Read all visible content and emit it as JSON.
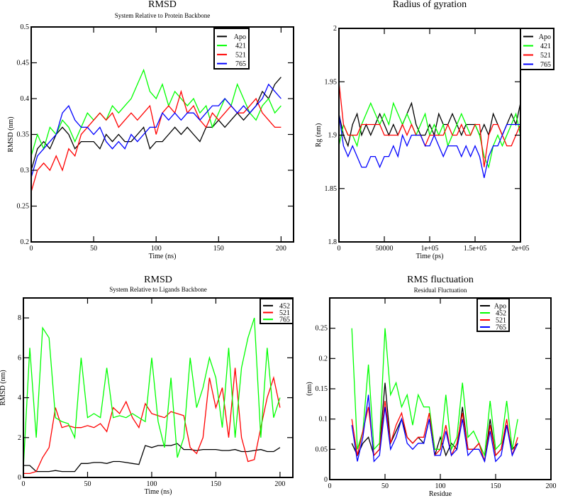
{
  "chart_data": [
    {
      "type": "line",
      "title": "RMSD",
      "subtitle": "System Relative to Protein Backbone",
      "xlabel": "Time (ns)",
      "ylabel": "RMSD (nm)",
      "xlim": [
        0,
        210
      ],
      "ylim": [
        0.2,
        0.5
      ],
      "xticks": [
        0,
        50,
        100,
        150,
        200
      ],
      "xtick_labels": [
        "0",
        "50",
        "100",
        "150",
        "200"
      ],
      "yticks": [
        0.2,
        0.25,
        0.3,
        0.35,
        0.4,
        0.45,
        0.5
      ],
      "ytick_labels": [
        "0.2",
        "0.25",
        "0.3",
        "0.35",
        "0.4",
        "0.45",
        "0.5"
      ],
      "legend_placement": "top-right",
      "x": [
        0,
        5,
        10,
        15,
        20,
        25,
        30,
        35,
        40,
        45,
        50,
        55,
        60,
        65,
        70,
        75,
        80,
        85,
        90,
        95,
        100,
        105,
        110,
        115,
        120,
        125,
        130,
        135,
        140,
        145,
        150,
        155,
        160,
        165,
        170,
        175,
        180,
        185,
        190,
        195,
        200
      ],
      "series": [
        {
          "name": "Apo",
          "color": "#000000",
          "values": [
            0.3,
            0.33,
            0.34,
            0.33,
            0.35,
            0.36,
            0.35,
            0.33,
            0.34,
            0.34,
            0.34,
            0.33,
            0.35,
            0.34,
            0.35,
            0.34,
            0.34,
            0.35,
            0.36,
            0.33,
            0.34,
            0.34,
            0.35,
            0.36,
            0.35,
            0.36,
            0.35,
            0.34,
            0.36,
            0.36,
            0.37,
            0.36,
            0.37,
            0.38,
            0.37,
            0.38,
            0.39,
            0.41,
            0.4,
            0.42,
            0.43
          ]
        },
        {
          "name": "421",
          "color": "#00ff00",
          "values": [
            0.32,
            0.35,
            0.33,
            0.36,
            0.35,
            0.37,
            0.36,
            0.34,
            0.36,
            0.38,
            0.37,
            0.38,
            0.37,
            0.39,
            0.38,
            0.39,
            0.4,
            0.42,
            0.44,
            0.41,
            0.4,
            0.42,
            0.39,
            0.41,
            0.4,
            0.39,
            0.4,
            0.38,
            0.39,
            0.36,
            0.38,
            0.4,
            0.39,
            0.42,
            0.4,
            0.38,
            0.37,
            0.39,
            0.4,
            0.38,
            0.39
          ]
        },
        {
          "name": "521",
          "color": "#ff0000",
          "values": [
            0.27,
            0.3,
            0.31,
            0.3,
            0.32,
            0.3,
            0.33,
            0.32,
            0.35,
            0.36,
            0.37,
            0.38,
            0.37,
            0.38,
            0.36,
            0.37,
            0.38,
            0.37,
            0.38,
            0.39,
            0.35,
            0.38,
            0.39,
            0.38,
            0.41,
            0.38,
            0.39,
            0.37,
            0.36,
            0.38,
            0.37,
            0.38,
            0.39,
            0.38,
            0.38,
            0.39,
            0.4,
            0.38,
            0.37,
            0.36,
            0.36
          ]
        },
        {
          "name": "765",
          "color": "#0000ff",
          "values": [
            0.29,
            0.32,
            0.33,
            0.34,
            0.35,
            0.38,
            0.39,
            0.37,
            0.36,
            0.36,
            0.35,
            0.36,
            0.34,
            0.33,
            0.34,
            0.33,
            0.35,
            0.34,
            0.35,
            0.36,
            0.36,
            0.38,
            0.37,
            0.38,
            0.37,
            0.38,
            0.38,
            0.37,
            0.38,
            0.39,
            0.39,
            0.4,
            0.39,
            0.38,
            0.39,
            0.38,
            0.39,
            0.4,
            0.42,
            0.41,
            0.4
          ]
        }
      ]
    },
    {
      "type": "line",
      "title": "Radius of gyration",
      "subtitle": "",
      "xlabel": "Time (ps)",
      "ylabel": "Rg (nm)",
      "xlim": [
        0,
        200000
      ],
      "ylim": [
        1.8,
        2.0
      ],
      "xticks": [
        0,
        50000,
        100000,
        150000,
        200000
      ],
      "xtick_labels": [
        "0",
        "50000",
        "1e+05",
        "1.5e+05",
        "2e+05"
      ],
      "yticks": [
        1.8,
        1.85,
        1.9,
        1.95,
        2.0
      ],
      "ytick_labels": [
        "1.8",
        "1.85",
        "1.9",
        "1.95",
        "2"
      ],
      "legend_placement": "top-right outside",
      "x": [
        0,
        5000,
        10000,
        15000,
        20000,
        25000,
        30000,
        35000,
        40000,
        45000,
        50000,
        55000,
        60000,
        65000,
        70000,
        75000,
        80000,
        85000,
        90000,
        95000,
        100000,
        105000,
        110000,
        115000,
        120000,
        125000,
        130000,
        135000,
        140000,
        145000,
        150000,
        155000,
        160000,
        165000,
        170000,
        175000,
        180000,
        185000,
        190000,
        195000,
        200000
      ],
      "series": [
        {
          "name": "Apo",
          "color": "#000000",
          "values": [
            1.92,
            1.9,
            1.89,
            1.91,
            1.92,
            1.9,
            1.91,
            1.9,
            1.91,
            1.92,
            1.91,
            1.9,
            1.91,
            1.9,
            1.91,
            1.92,
            1.93,
            1.91,
            1.9,
            1.9,
            1.91,
            1.9,
            1.92,
            1.91,
            1.91,
            1.92,
            1.91,
            1.9,
            1.91,
            1.91,
            1.91,
            1.9,
            1.91,
            1.9,
            1.92,
            1.91,
            1.9,
            1.91,
            1.92,
            1.91,
            1.93
          ]
        },
        {
          "name": "421",
          "color": "#00ff00",
          "values": [
            1.89,
            1.91,
            1.9,
            1.9,
            1.89,
            1.91,
            1.92,
            1.93,
            1.92,
            1.91,
            1.92,
            1.91,
            1.93,
            1.92,
            1.91,
            1.92,
            1.91,
            1.9,
            1.91,
            1.92,
            1.9,
            1.91,
            1.9,
            1.91,
            1.89,
            1.9,
            1.91,
            1.92,
            1.91,
            1.9,
            1.91,
            1.9,
            1.88,
            1.87,
            1.89,
            1.9,
            1.89,
            1.9,
            1.91,
            1.92,
            1.9
          ]
        },
        {
          "name": "521",
          "color": "#ff0000",
          "values": [
            1.95,
            1.91,
            1.9,
            1.9,
            1.9,
            1.91,
            1.91,
            1.91,
            1.91,
            1.91,
            1.9,
            1.9,
            1.9,
            1.9,
            1.91,
            1.9,
            1.91,
            1.9,
            1.9,
            1.89,
            1.9,
            1.9,
            1.9,
            1.9,
            1.91,
            1.9,
            1.9,
            1.91,
            1.9,
            1.9,
            1.91,
            1.91,
            1.87,
            1.9,
            1.91,
            1.91,
            1.9,
            1.89,
            1.89,
            1.9,
            1.91
          ]
        },
        {
          "name": "765",
          "color": "#0000ff",
          "values": [
            1.92,
            1.89,
            1.88,
            1.89,
            1.88,
            1.87,
            1.87,
            1.88,
            1.88,
            1.87,
            1.88,
            1.88,
            1.89,
            1.88,
            1.9,
            1.89,
            1.9,
            1.9,
            1.9,
            1.89,
            1.89,
            1.9,
            1.89,
            1.88,
            1.89,
            1.89,
            1.89,
            1.88,
            1.89,
            1.88,
            1.89,
            1.88,
            1.86,
            1.88,
            1.89,
            1.89,
            1.9,
            1.91,
            1.91,
            1.91,
            1.91
          ]
        }
      ]
    },
    {
      "type": "line",
      "title": "RMSD",
      "subtitle": "System Relative to Ligands Backbone",
      "xlabel": "Time (ns)",
      "ylabel": "RMSD (nm)",
      "xlim": [
        0,
        210
      ],
      "ylim": [
        0,
        9
      ],
      "xticks": [
        0,
        50,
        100,
        150,
        200
      ],
      "xtick_labels": [
        "0",
        "50",
        "100",
        "150",
        "200"
      ],
      "yticks": [
        0,
        2,
        4,
        6,
        8
      ],
      "ytick_labels": [
        "0",
        "2",
        "4",
        "6",
        "8"
      ],
      "legend_placement": "top-right",
      "x": [
        0,
        5,
        10,
        15,
        20,
        25,
        30,
        35,
        40,
        45,
        50,
        55,
        60,
        65,
        70,
        75,
        80,
        85,
        90,
        95,
        100,
        105,
        110,
        115,
        120,
        125,
        130,
        135,
        140,
        145,
        150,
        155,
        160,
        165,
        170,
        175,
        180,
        185,
        190,
        195,
        200
      ],
      "series": [
        {
          "name": "452",
          "color": "#000000",
          "values": [
            0.6,
            0.6,
            0.3,
            0.3,
            0.3,
            0.35,
            0.3,
            0.3,
            0.3,
            0.7,
            0.7,
            0.75,
            0.75,
            0.7,
            0.8,
            0.8,
            0.75,
            0.7,
            0.65,
            1.6,
            1.5,
            1.6,
            1.6,
            1.6,
            1.7,
            1.4,
            1.4,
            1.35,
            1.4,
            1.4,
            1.4,
            1.35,
            1.35,
            1.4,
            1.3,
            1.3,
            1.35,
            1.4,
            1.3,
            1.3,
            1.5
          ]
        },
        {
          "name": "521",
          "color": "#ff0000",
          "values": [
            0.2,
            0.2,
            0.3,
            1.0,
            1.5,
            3.5,
            2.5,
            2.6,
            2.5,
            2.5,
            2.6,
            2.5,
            2.7,
            2.3,
            3.5,
            3.2,
            3.8,
            3.0,
            2.5,
            3.7,
            3.2,
            3.1,
            3.0,
            3.3,
            3.2,
            3.1,
            1.5,
            1.2,
            2.0,
            5.0,
            3.5,
            4.5,
            2.0,
            5.5,
            2.0,
            0.8,
            0.9,
            2.5,
            4.0,
            5.0,
            3.5
          ]
        },
        {
          "name": "765",
          "color": "#00ff00",
          "values": [
            0.5,
            6.5,
            2.0,
            7.5,
            7.0,
            3.0,
            2.8,
            2.7,
            2.0,
            6.0,
            3.0,
            3.2,
            3.0,
            5.5,
            3.0,
            3.1,
            3.0,
            3.2,
            3.0,
            2.8,
            6.0,
            2.8,
            1.5,
            5.0,
            1.0,
            2.0,
            6.0,
            3.5,
            4.5,
            6.0,
            5.0,
            2.5,
            6.5,
            2.0,
            5.5,
            7.0,
            8.0,
            2.0,
            6.5,
            3.0,
            4.0
          ]
        }
      ]
    },
    {
      "type": "line",
      "title": "RMS fluctuation",
      "subtitle": "Residual Fluctuation",
      "xlabel": "Residue",
      "ylabel": "(nm)",
      "xlim": [
        0,
        200
      ],
      "ylim": [
        0,
        0.3
      ],
      "xticks": [
        0,
        50,
        100,
        150,
        200
      ],
      "xtick_labels": [
        "0",
        "50",
        "100",
        "150",
        "200"
      ],
      "yticks": [
        0,
        0.05,
        0.1,
        0.15,
        0.2,
        0.25
      ],
      "ytick_labels": [
        "0",
        "0.05",
        "0.1",
        "0.15",
        "0.2",
        "0.25"
      ],
      "legend_placement": "top-right",
      "x": [
        20,
        25,
        30,
        35,
        40,
        45,
        50,
        55,
        60,
        65,
        70,
        75,
        80,
        85,
        90,
        95,
        100,
        105,
        110,
        115,
        120,
        125,
        130,
        135,
        140,
        145,
        150,
        155,
        160,
        165,
        170
      ],
      "series": [
        {
          "name": "Apo",
          "color": "#000000",
          "values": [
            0.06,
            0.04,
            0.06,
            0.07,
            0.04,
            0.05,
            0.16,
            0.06,
            0.08,
            0.1,
            0.07,
            0.06,
            0.07,
            0.06,
            0.1,
            0.04,
            0.07,
            0.04,
            0.06,
            0.05,
            0.12,
            0.05,
            0.05,
            0.06,
            0.03,
            0.1,
            0.04,
            0.05,
            0.09,
            0.05,
            0.06
          ]
        },
        {
          "name": "452",
          "color": "#00ff00",
          "values": [
            0.25,
            0.05,
            0.08,
            0.19,
            0.05,
            0.06,
            0.25,
            0.14,
            0.16,
            0.12,
            0.14,
            0.09,
            0.14,
            0.12,
            0.12,
            0.05,
            0.05,
            0.14,
            0.05,
            0.07,
            0.16,
            0.07,
            0.08,
            0.06,
            0.04,
            0.13,
            0.05,
            0.06,
            0.13,
            0.05,
            0.1
          ]
        },
        {
          "name": "521",
          "color": "#ff0000",
          "values": [
            0.1,
            0.04,
            0.08,
            0.12,
            0.04,
            0.05,
            0.13,
            0.06,
            0.09,
            0.11,
            0.07,
            0.06,
            0.07,
            0.07,
            0.11,
            0.04,
            0.05,
            0.09,
            0.04,
            0.06,
            0.11,
            0.05,
            0.05,
            0.06,
            0.03,
            0.09,
            0.04,
            0.05,
            0.1,
            0.04,
            0.07
          ]
        },
        {
          "name": "765",
          "color": "#0000ff",
          "values": [
            0.09,
            0.03,
            0.07,
            0.14,
            0.03,
            0.04,
            0.12,
            0.05,
            0.07,
            0.1,
            0.06,
            0.05,
            0.06,
            0.06,
            0.1,
            0.04,
            0.04,
            0.08,
            0.04,
            0.05,
            0.1,
            0.04,
            0.05,
            0.05,
            0.03,
            0.08,
            0.03,
            0.04,
            0.09,
            0.04,
            0.06
          ]
        }
      ]
    }
  ]
}
